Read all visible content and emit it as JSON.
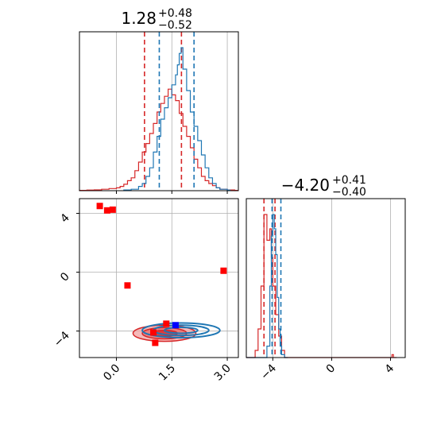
{
  "chart_data": {
    "type": "corner",
    "parameters": [
      {
        "median": 1.28,
        "upper_err": 0.48,
        "lower_err": 0.52,
        "title_main": "1.28",
        "title_sup": "+0.48",
        "title_sub": "−0.52",
        "range": [
          -1.0,
          3.3
        ]
      },
      {
        "median": -4.2,
        "upper_err": 0.41,
        "lower_err": 0.4,
        "title_main": "−4.20",
        "title_sup": "+0.41",
        "title_sub": "−0.40",
        "range": [
          -5.8,
          5.0
        ]
      }
    ],
    "ticks": {
      "x0": {
        "values": [
          0.0,
          1.5,
          3.0
        ],
        "labels": [
          "0.0",
          "1.5",
          "3.0"
        ]
      },
      "y1": {
        "values": [
          4,
          0,
          -4
        ],
        "labels": [
          "4",
          "0",
          "−4"
        ]
      },
      "x1": {
        "values": [
          -4,
          0,
          4
        ],
        "labels": [
          "−4",
          "0",
          "4"
        ]
      }
    },
    "grid": true,
    "series": [
      {
        "color": "#d62728",
        "quantile_lines": {
          "p0": [
            0.76,
            1.76
          ],
          "p1": [
            -4.6,
            -3.85
          ]
        },
        "hist_p0": [
          [
            -1.0,
            0.002
          ],
          [
            -0.8,
            0.004
          ],
          [
            -0.6,
            0.006
          ],
          [
            -0.4,
            0.01
          ],
          [
            -0.2,
            0.015
          ],
          [
            0.0,
            0.02
          ],
          [
            0.1,
            0.03
          ],
          [
            0.2,
            0.045
          ],
          [
            0.3,
            0.07
          ],
          [
            0.4,
            0.09
          ],
          [
            0.5,
            0.14
          ],
          [
            0.6,
            0.2
          ],
          [
            0.7,
            0.27
          ],
          [
            0.8,
            0.33
          ],
          [
            0.9,
            0.4
          ],
          [
            1.0,
            0.47
          ],
          [
            1.1,
            0.55
          ],
          [
            1.2,
            0.61
          ],
          [
            1.3,
            0.66
          ],
          [
            1.4,
            0.71
          ],
          [
            1.5,
            0.67
          ],
          [
            1.6,
            0.63
          ],
          [
            1.7,
            0.54
          ],
          [
            1.8,
            0.45
          ],
          [
            1.9,
            0.38
          ],
          [
            2.0,
            0.3
          ],
          [
            2.1,
            0.22
          ],
          [
            2.2,
            0.16
          ],
          [
            2.3,
            0.1
          ],
          [
            2.4,
            0.07
          ],
          [
            2.5,
            0.05
          ],
          [
            2.6,
            0.035
          ],
          [
            2.7,
            0.02
          ],
          [
            2.8,
            0.01
          ],
          [
            3.0,
            0.005
          ],
          [
            3.2,
            0.002
          ]
        ],
        "hist_p1": [
          [
            -5.8,
            0.0
          ],
          [
            -5.2,
            0.05
          ],
          [
            -5.0,
            0.2
          ],
          [
            -4.8,
            0.5
          ],
          [
            -4.6,
            1.0
          ],
          [
            -4.4,
            0.82
          ],
          [
            -4.2,
            0.9
          ],
          [
            -4.1,
            0.7
          ],
          [
            -4.0,
            0.5
          ],
          [
            -3.8,
            0.3
          ],
          [
            -3.6,
            0.15
          ],
          [
            -3.4,
            0.05
          ],
          [
            -3.2,
            0.0
          ],
          [
            4.0,
            0.0
          ],
          [
            4.1,
            0.02
          ],
          [
            4.2,
            0.0
          ]
        ]
      },
      {
        "color": "#1f77b4",
        "quantile_lines": {
          "p0": [
            1.16,
            2.1
          ],
          "p1": [
            -4.05,
            -3.45
          ]
        },
        "hist_p0": [
          [
            0.2,
            0.005
          ],
          [
            0.4,
            0.01
          ],
          [
            0.6,
            0.03
          ],
          [
            0.7,
            0.05
          ],
          [
            0.8,
            0.1
          ],
          [
            0.9,
            0.16
          ],
          [
            1.0,
            0.27
          ],
          [
            1.1,
            0.38
          ],
          [
            1.2,
            0.5
          ],
          [
            1.3,
            0.58
          ],
          [
            1.4,
            0.65
          ],
          [
            1.5,
            0.74
          ],
          [
            1.6,
            0.81
          ],
          [
            1.65,
            0.88
          ],
          [
            1.7,
            0.96
          ],
          [
            1.75,
            1.0
          ],
          [
            1.8,
            0.85
          ],
          [
            1.9,
            0.7
          ],
          [
            2.0,
            0.55
          ],
          [
            2.1,
            0.45
          ],
          [
            2.2,
            0.35
          ],
          [
            2.3,
            0.25
          ],
          [
            2.4,
            0.16
          ],
          [
            2.5,
            0.09
          ],
          [
            2.6,
            0.05
          ],
          [
            2.7,
            0.02
          ],
          [
            2.8,
            0.01
          ],
          [
            3.0,
            0.004
          ]
        ],
        "hist_p1": [
          [
            -5.8,
            0.0
          ],
          [
            -4.6,
            0.0
          ],
          [
            -4.4,
            0.08
          ],
          [
            -4.2,
            0.5
          ],
          [
            -4.1,
            0.85
          ],
          [
            -4.0,
            1.0
          ],
          [
            -3.9,
            0.9
          ],
          [
            -3.8,
            0.72
          ],
          [
            -3.7,
            0.42
          ],
          [
            -3.6,
            0.2
          ],
          [
            -3.5,
            0.08
          ],
          [
            -3.4,
            0.02
          ],
          [
            -3.2,
            0.0
          ]
        ]
      }
    ],
    "markers": {
      "red_squares": [
        [
          -0.45,
          4.5
        ],
        [
          -0.25,
          4.2
        ],
        [
          -0.1,
          4.25
        ],
        [
          0.3,
          -0.9
        ],
        [
          2.9,
          0.1
        ],
        [
          1.0,
          -4.1
        ],
        [
          1.35,
          -3.5
        ],
        [
          1.05,
          -4.8
        ]
      ],
      "blue_square": [
        1.6,
        -3.6
      ]
    },
    "contours": {
      "red_centre": [
        1.3,
        -4.15
      ],
      "red_radii": [
        [
          0.85,
          0.55
        ],
        [
          0.6,
          0.38
        ],
        [
          0.35,
          0.2
        ]
      ],
      "blue_centre": [
        1.75,
        -3.95
      ],
      "blue_radii": [
        [
          1.05,
          0.5
        ],
        [
          0.75,
          0.35
        ],
        [
          0.45,
          0.2
        ]
      ]
    }
  }
}
